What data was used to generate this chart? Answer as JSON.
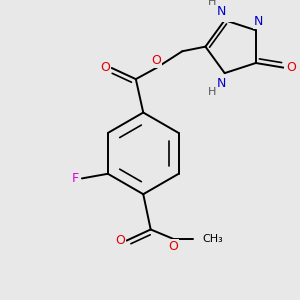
{
  "bg_color": "#e8e8e8",
  "bond_color": "#000000",
  "bond_width": 1.4,
  "atom_colors": {
    "O": "#e00000",
    "F": "#dd00dd",
    "N": "#0000cc",
    "H": "#555555"
  },
  "font_size": 8.5
}
